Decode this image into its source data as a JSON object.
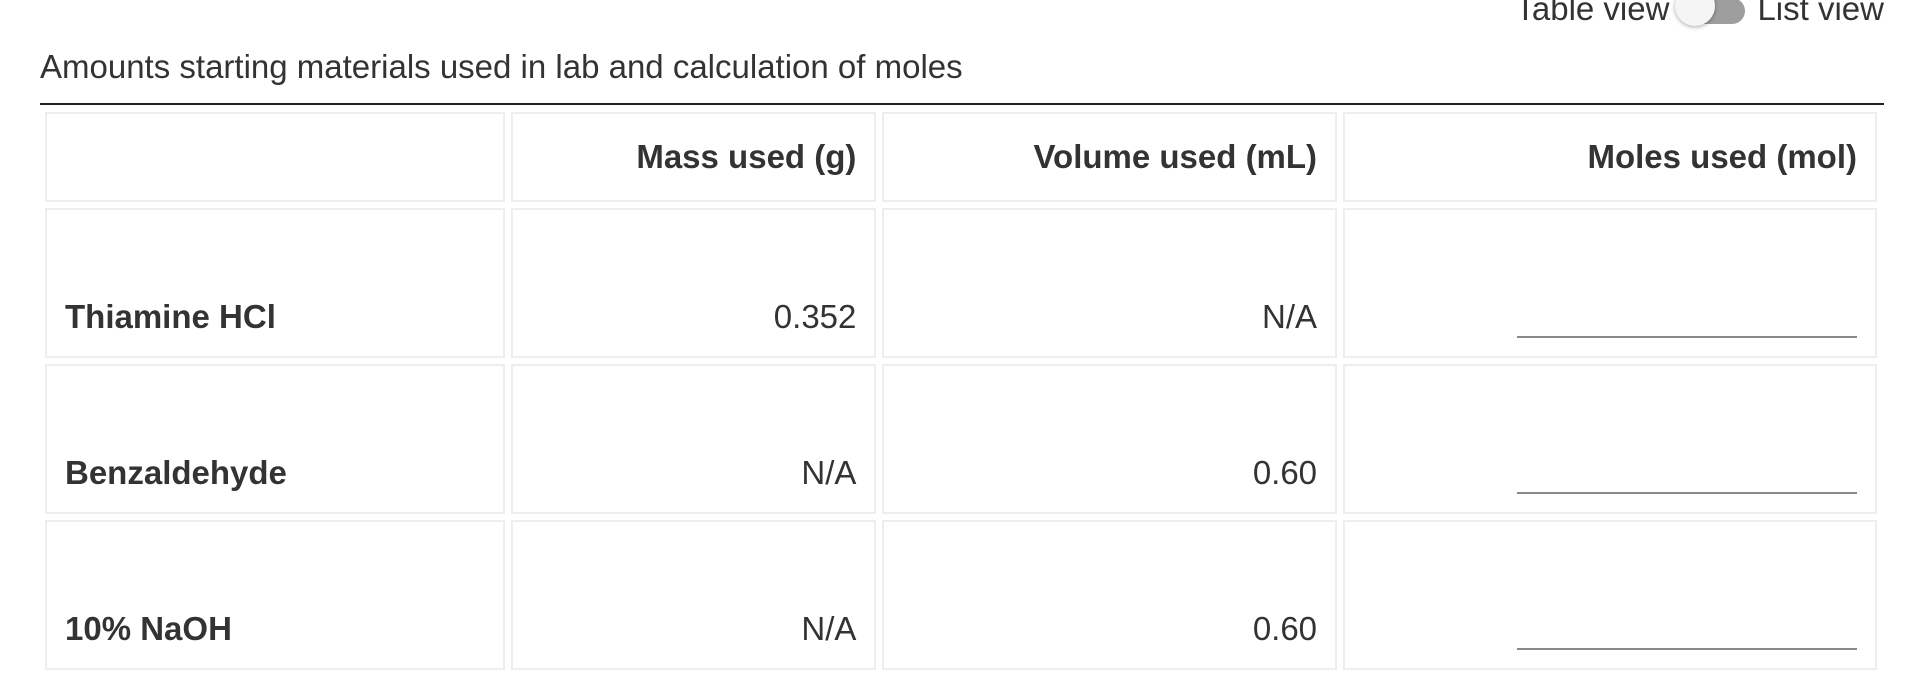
{
  "toggle": {
    "left_label": "Table view",
    "right_label": "List view"
  },
  "table": {
    "caption": "Amounts starting materials used in lab and calculation of moles",
    "headers": [
      "",
      "Mass used (g)",
      "Volume used (mL)",
      "Moles used (mol)"
    ],
    "rows": [
      {
        "label": "Thiamine HCl",
        "mass": "0.352",
        "volume": "N/A",
        "moles": ""
      },
      {
        "label": "Benzaldehyde",
        "mass": "N/A",
        "volume": "0.60",
        "moles": ""
      },
      {
        "label": "10% NaOH",
        "mass": "N/A",
        "volume": "0.60",
        "moles": ""
      }
    ]
  }
}
